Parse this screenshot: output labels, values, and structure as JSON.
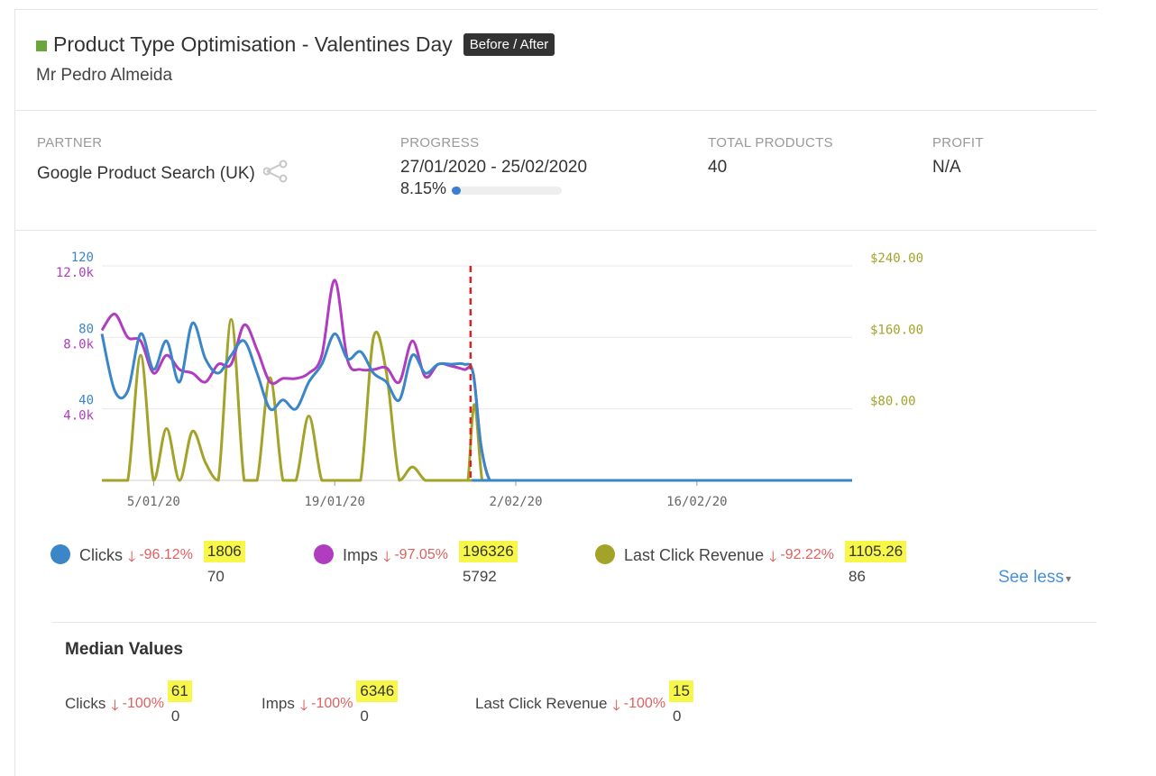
{
  "header": {
    "title": "Product Type Optimisation - Valentines Day",
    "badge": "Before / After",
    "owner": "Mr Pedro Almeida",
    "accent_color": "#6aa63b"
  },
  "stats": {
    "partner_label": "PARTNER",
    "partner_value": "Google Product Search (UK)",
    "partner_icon": "share-icon",
    "progress_label": "PROGRESS",
    "progress_dates": "27/01/2020 - 25/02/2020",
    "progress_percent": "8.15%",
    "progress_fraction": 0.0815,
    "total_products_label": "TOTAL PRODUCTS",
    "total_products_value": "40",
    "profit_label": "PROFIT",
    "profit_value": "N/A"
  },
  "chart_data": {
    "type": "line",
    "x_ticks": [
      "5/01/20",
      "19/01/20",
      "2/02/20",
      "16/02/20"
    ],
    "x_tick_days": [
      5,
      19,
      33,
      47
    ],
    "x_range_days": [
      1,
      59
    ],
    "start_marker_day": 29.5,
    "marker_color": "#e02020",
    "y_left_clicks": {
      "ticks": [
        "120",
        "80",
        "40"
      ],
      "tick_values": [
        120,
        80,
        40
      ],
      "range": [
        0,
        120
      ],
      "color": "#3a86c8"
    },
    "y_left_imps": {
      "ticks": [
        "12.0k",
        "8.0k",
        "4.0k"
      ],
      "tick_values": [
        12000,
        8000,
        4000
      ],
      "range": [
        0,
        12000
      ],
      "color": "#b03cbf"
    },
    "y_right_revenue": {
      "ticks": [
        "$240.00",
        "$160.00",
        "$80.00"
      ],
      "tick_values": [
        240,
        160,
        80
      ],
      "range": [
        0,
        240
      ],
      "color": "#a3a32a"
    },
    "series": [
      {
        "name": "Clicks",
        "color": "#3a86c8",
        "x": [
          1,
          2,
          3,
          4,
          5,
          6,
          7,
          8,
          9,
          10,
          11,
          12,
          13,
          14,
          15,
          16,
          17,
          18,
          19,
          20,
          21,
          22,
          23,
          24,
          25,
          26,
          27,
          28,
          29,
          29.7,
          30.3,
          31,
          32,
          59
        ],
        "y": [
          82,
          50,
          50,
          82,
          62,
          78,
          55,
          88,
          68,
          60,
          70,
          78,
          60,
          40,
          45,
          40,
          55,
          65,
          82,
          68,
          72,
          60,
          55,
          45,
          70,
          60,
          65,
          65,
          65,
          60,
          20,
          0,
          0,
          0
        ]
      },
      {
        "name": "Imps",
        "color": "#b03cbf",
        "x": [
          1,
          2,
          3,
          4,
          5,
          6,
          7,
          8,
          9,
          10,
          11,
          12,
          13,
          14,
          15,
          16,
          17,
          18,
          19,
          20,
          21,
          22,
          23,
          24,
          25,
          26,
          27,
          28,
          29,
          29.7,
          30.3,
          31,
          32,
          59
        ],
        "y": [
          8400,
          9300,
          8000,
          7800,
          6000,
          7000,
          6200,
          6000,
          5500,
          6500,
          6500,
          8700,
          7300,
          5500,
          5700,
          5700,
          6000,
          7000,
          11200,
          6700,
          6200,
          6200,
          6300,
          5500,
          7800,
          5800,
          6500,
          6400,
          6200,
          6000,
          2000,
          0,
          0,
          0
        ]
      },
      {
        "name": "Last Click Revenue",
        "color": "#a3a32a",
        "x": [
          1,
          2,
          3,
          4,
          5,
          6,
          7,
          8,
          9,
          10,
          11,
          12,
          13,
          14,
          15,
          16,
          17,
          18,
          19,
          20,
          21,
          22,
          23,
          24,
          25,
          26,
          27,
          28,
          29,
          29.3,
          29.8,
          30.4,
          31,
          59
        ],
        "y": [
          0,
          0,
          0,
          140,
          0,
          58,
          0,
          55,
          20,
          0,
          180,
          0,
          0,
          115,
          0,
          0,
          72,
          0,
          0,
          0,
          0,
          160,
          120,
          0,
          15,
          0,
          0,
          0,
          0,
          0,
          85,
          0,
          0,
          0
        ]
      }
    ]
  },
  "legend": [
    {
      "name": "Clicks",
      "color": "#3a86c8",
      "change": "-96.12%",
      "before": "1806",
      "after": "70"
    },
    {
      "name": "Imps",
      "color": "#b03cbf",
      "change": "-97.05%",
      "before": "196326",
      "after": "5792"
    },
    {
      "name": "Last Click Revenue",
      "color": "#a3a32a",
      "change": "-92.22%",
      "before": "1105.26",
      "after": "86"
    }
  ],
  "see_less": "See less",
  "median": {
    "title": "Median Values",
    "items": [
      {
        "name": "Clicks",
        "change": "-100%",
        "before": "61",
        "after": "0"
      },
      {
        "name": "Imps",
        "change": "-100%",
        "before": "6346",
        "after": "0"
      },
      {
        "name": "Last Click Revenue",
        "change": "-100%",
        "before": "15",
        "after": "0"
      }
    ]
  },
  "highlight_color": "#f7f74a",
  "arrow_glyph": "🡓"
}
